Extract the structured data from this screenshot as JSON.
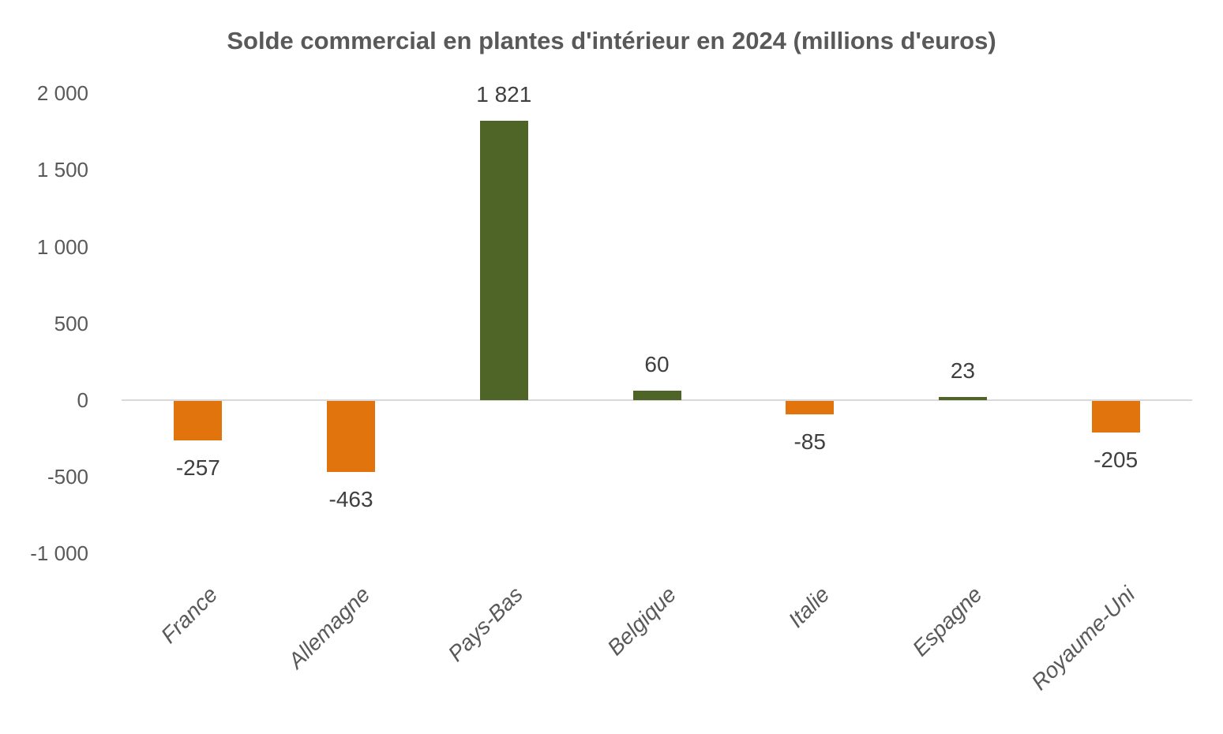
{
  "chart_data": {
    "type": "bar",
    "title": "Solde commercial en plantes d'intérieur en 2024 (millions d'euros)",
    "xlabel": "",
    "ylabel": "",
    "unit": "millions d'euros",
    "categories": [
      "France",
      "Allemagne",
      "Pays-Bas",
      "Belgique",
      "Italie",
      "Espagne",
      "Royaume-Uni"
    ],
    "values": [
      -257,
      -463,
      1821,
      60,
      -85,
      23,
      -205
    ],
    "value_labels": [
      "-257",
      "-463",
      "1 821",
      "60",
      "-85",
      "23",
      "-205"
    ],
    "ylim": [
      -1000,
      2000
    ],
    "y_ticks": [
      {
        "value": 2000,
        "label": "2 000"
      },
      {
        "value": 1500,
        "label": "1 500"
      },
      {
        "value": 1000,
        "label": "1 000"
      },
      {
        "value": 500,
        "label": "500"
      },
      {
        "value": 0,
        "label": "0"
      },
      {
        "value": -500,
        "label": "-500"
      },
      {
        "value": -1000,
        "label": "-1 000"
      }
    ],
    "grid": false,
    "legend": false,
    "label_position": "outside-end",
    "colors": {
      "positive_bar": "#4F6528",
      "negative_bar": "#E2740E",
      "axis_line": "#D9D9D9",
      "title_text": "#595959",
      "tick_text": "#595959",
      "data_label_text": "#3F3F3F",
      "background": "#FFFFFF"
    }
  }
}
